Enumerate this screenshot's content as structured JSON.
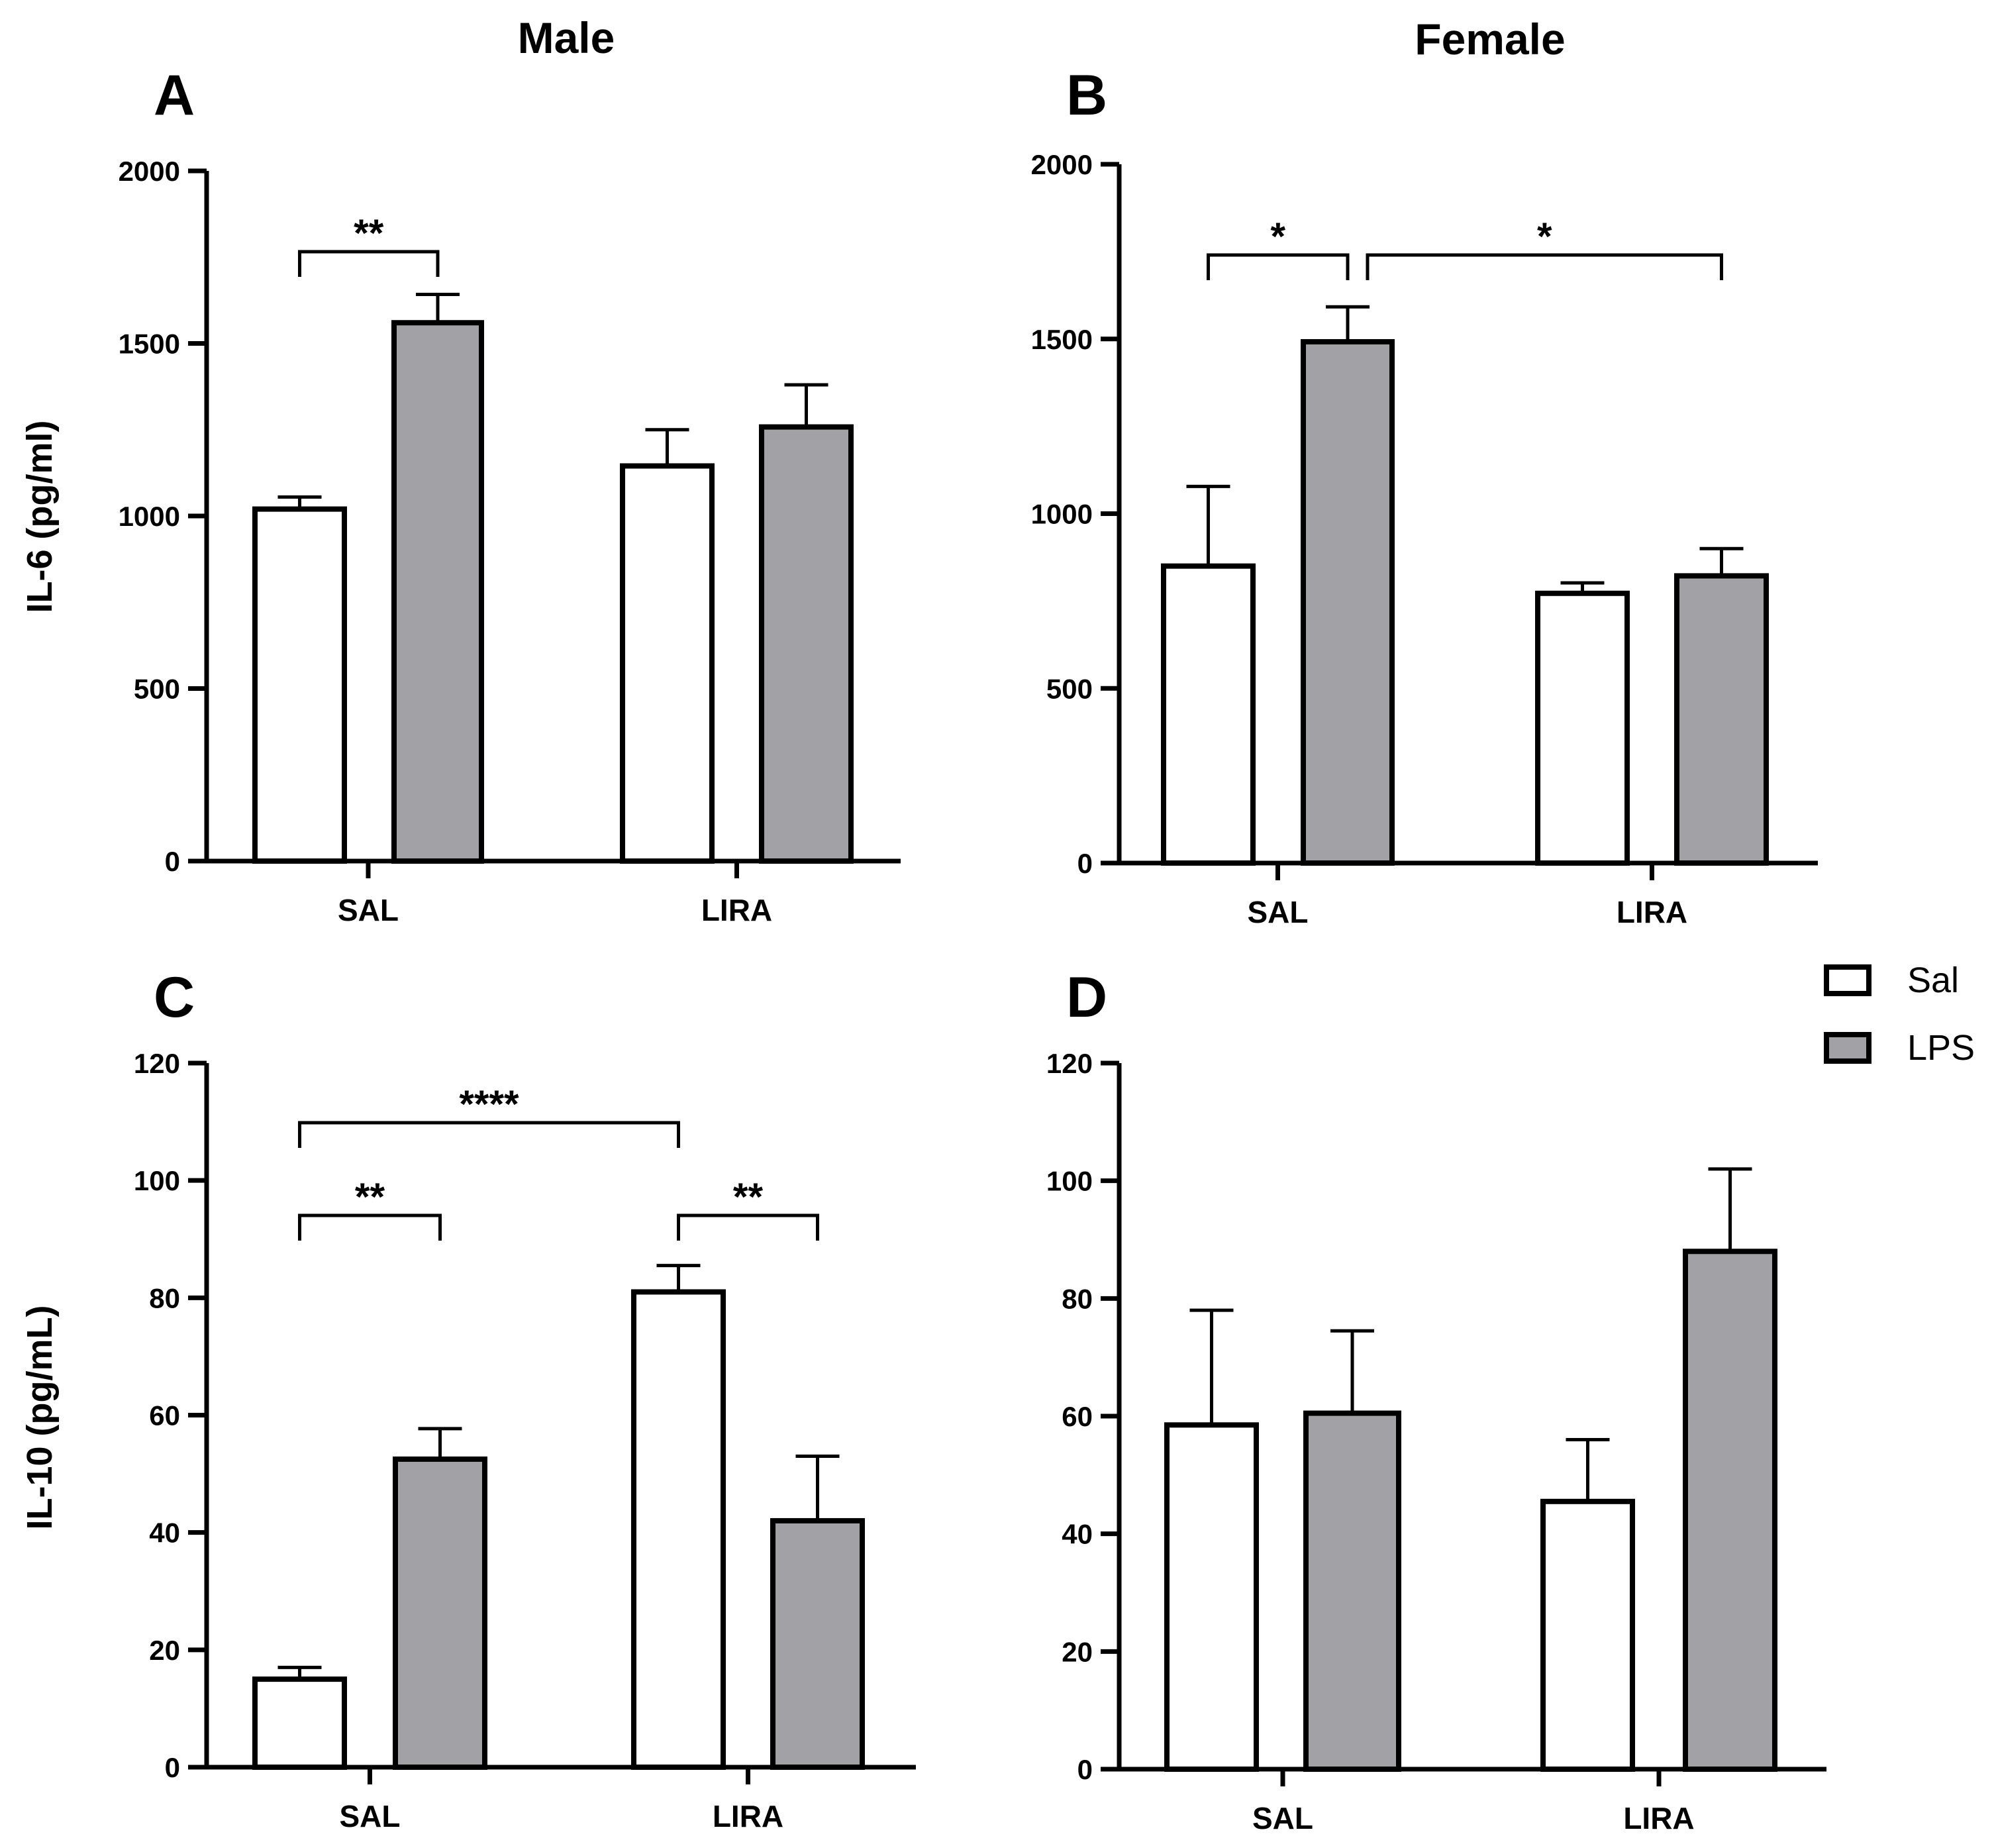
{
  "colors": {
    "sal": "#ffffff",
    "lps": "#a2a2a6",
    "ink": "#000000"
  },
  "column_titles": {
    "male": "Male",
    "female": "Female"
  },
  "legend": [
    {
      "name": "Sal",
      "color": "#ffffff"
    },
    {
      "name": "LPS",
      "color": "#a2a2a6"
    }
  ],
  "chart_data": [
    {
      "panel": "A",
      "type": "bar",
      "column": "Male",
      "title": "",
      "ylabel": "IL-6 (pg/ml)",
      "ylim": [
        0,
        2000
      ],
      "yticks": [
        0,
        500,
        1000,
        1500,
        2000
      ],
      "categories": [
        "SAL",
        "LIRA"
      ],
      "series": [
        {
          "name": "Sal",
          "values": [
            1020,
            1145
          ],
          "errors": [
            35,
            105
          ]
        },
        {
          "name": "LPS",
          "values": [
            1560,
            1258
          ],
          "errors": [
            82,
            122
          ]
        }
      ],
      "significance": [
        {
          "from": [
            0,
            0
          ],
          "to": [
            0,
            1
          ],
          "label": "**"
        }
      ]
    },
    {
      "panel": "B",
      "type": "bar",
      "column": "Female",
      "title": "",
      "ylabel": "",
      "ylim": [
        0,
        2000
      ],
      "yticks": [
        0,
        500,
        1000,
        1500,
        2000
      ],
      "categories": [
        "SAL",
        "LIRA"
      ],
      "series": [
        {
          "name": "Sal",
          "values": [
            850,
            772
          ],
          "errors": [
            228,
            30
          ]
        },
        {
          "name": "LPS",
          "values": [
            1492,
            822
          ],
          "errors": [
            100,
            78
          ]
        }
      ],
      "significance": [
        {
          "from": [
            0,
            0
          ],
          "to": [
            0,
            1
          ],
          "label": "*"
        },
        {
          "from": [
            0,
            1
          ],
          "to": [
            1,
            1
          ],
          "label": "*"
        }
      ]
    },
    {
      "panel": "C",
      "type": "bar",
      "column": "Male",
      "title": "",
      "ylabel": "IL-10 (pg/mL)",
      "ylim": [
        0,
        120
      ],
      "yticks": [
        0,
        20,
        40,
        60,
        80,
        100,
        120
      ],
      "categories": [
        "SAL",
        "LIRA"
      ],
      "series": [
        {
          "name": "Sal",
          "values": [
            15,
            81
          ],
          "errors": [
            2,
            4.5
          ]
        },
        {
          "name": "LPS",
          "values": [
            52.5,
            42
          ],
          "errors": [
            5.2,
            11
          ]
        }
      ],
      "significance": [
        {
          "from": [
            0,
            0
          ],
          "to": [
            1,
            0
          ],
          "label": "****"
        },
        {
          "from": [
            0,
            0
          ],
          "to": [
            0,
            1
          ],
          "label": "**"
        },
        {
          "from": [
            1,
            0
          ],
          "to": [
            1,
            1
          ],
          "label": "**"
        }
      ]
    },
    {
      "panel": "D",
      "type": "bar",
      "column": "Female",
      "title": "",
      "ylabel": "",
      "ylim": [
        0,
        120
      ],
      "yticks": [
        0,
        20,
        40,
        60,
        80,
        100,
        120
      ],
      "categories": [
        "SAL",
        "LIRA"
      ],
      "series": [
        {
          "name": "Sal",
          "values": [
            58.5,
            45.5
          ],
          "errors": [
            19.5,
            10.5
          ]
        },
        {
          "name": "LPS",
          "values": [
            60.5,
            88
          ],
          "errors": [
            14,
            14
          ]
        }
      ],
      "significance": []
    }
  ]
}
